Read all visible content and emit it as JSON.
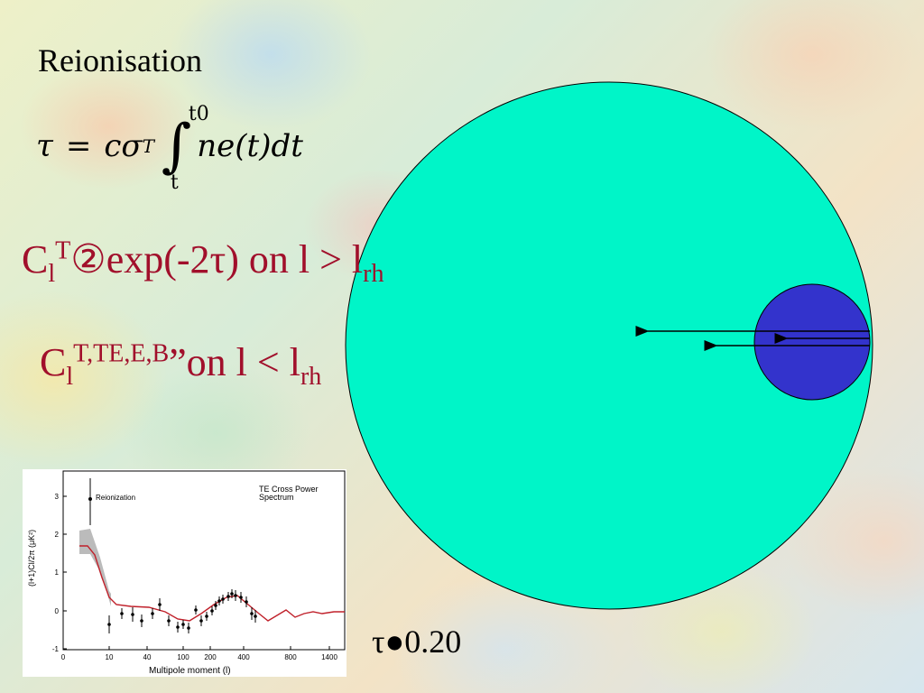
{
  "slide": {
    "title": "Reionisation",
    "formula": {
      "lhs": "τ",
      "equals": "=",
      "c": "c",
      "sigma": "σ",
      "sigma_sub": "T",
      "integral": "∫",
      "upper_limit": "t0",
      "lower_limit": "t",
      "integrand": "ne(t)dt"
    },
    "line1": {
      "c": "C",
      "c_sub": "l",
      "c_sup": "T",
      "body": "②exp(-2τ) on l > l",
      "end_sub": "rh"
    },
    "line2": {
      "c": "C",
      "c_sub": "l",
      "c_sup": "T,TE,E,B",
      "body": "”on l < l",
      "end_sub": "rh"
    },
    "tau_value": "τ●0.20"
  },
  "diagram": {
    "big_circle_color": "#00f5c8",
    "small_circle_color": "#3333cc"
  },
  "plot": {
    "title_line1": "TE Cross Power",
    "title_line2": "Spectrum",
    "annotation": "Reionization",
    "ylabel": "(l+1)Cl/2π (μK²)",
    "xlabel": "Multipole moment (l)",
    "yticks": [
      "3",
      "2",
      "1",
      "0",
      "-1"
    ],
    "xticks": [
      "0",
      "10",
      "40",
      "100",
      "200",
      "400",
      "800",
      "1400"
    ],
    "colors": {
      "model": "#c0202a",
      "band": "#bbbbbb",
      "points": "#000000"
    }
  }
}
